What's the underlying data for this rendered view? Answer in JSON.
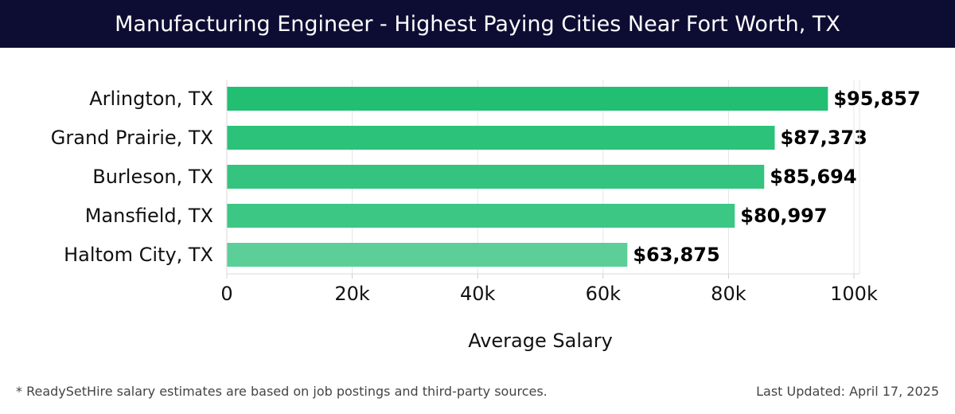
{
  "header": {
    "title": "Manufacturing Engineer - Highest Paying Cities Near Fort Worth, TX"
  },
  "chart_data": {
    "type": "bar",
    "orientation": "horizontal",
    "categories": [
      "Arlington, TX",
      "Grand Prairie, TX",
      "Burleson, TX",
      "Mansfield, TX",
      "Haltom City, TX"
    ],
    "values": [
      95857,
      87373,
      85694,
      80997,
      63875
    ],
    "data_labels": [
      "$95,857",
      "$87,373",
      "$85,694",
      "$80,997",
      "$63,875"
    ],
    "xlabel": "Average Salary",
    "ylabel": "",
    "xlim": [
      0,
      100000
    ],
    "xticks": [
      0,
      20000,
      40000,
      60000,
      80000,
      100000
    ],
    "xtick_labels": [
      "0",
      "20k",
      "40k",
      "60k",
      "80k",
      "100k"
    ],
    "grid": true,
    "bar_colors": [
      "#22bf73",
      "#2cc27a",
      "#34c47f",
      "#3cc784",
      "#5ccf98"
    ]
  },
  "footer": {
    "note": "* ReadySetHire salary estimates are based on job postings and third-party sources.",
    "updated": "Last Updated: April 17, 2025"
  }
}
